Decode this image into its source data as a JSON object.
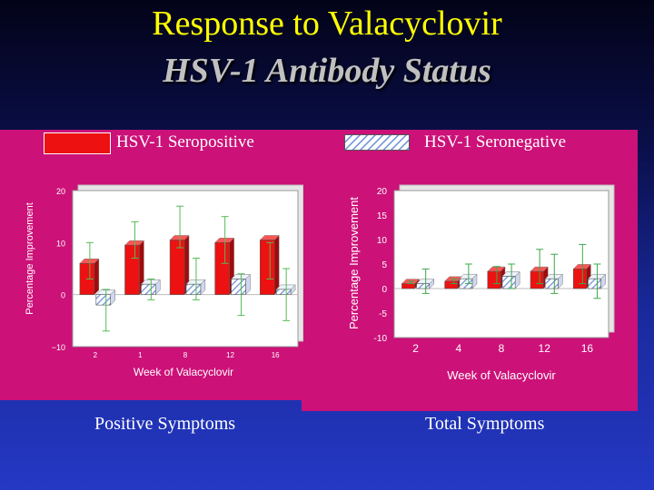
{
  "slide": {
    "title": "Response to Valacyclovir",
    "subtitle": "HSV-1 Antibody Status"
  },
  "legend": {
    "seropositive": "HSV-1 Seropositive",
    "seronegative": "HSV-1 Seronegative"
  },
  "captions": {
    "left": "Positive Symptoms",
    "right": "Total Symptoms"
  },
  "colors": {
    "background": "#1a2a9e",
    "panel": "#cc1178",
    "seropositive": "#ee1111",
    "seronegative_hatch": "#6b8fd6",
    "title": "#ffff00"
  },
  "chart_data": [
    {
      "type": "bar",
      "title": "",
      "xlabel": "Week of Valacyclovir",
      "ylabel": "Percentage Improvement",
      "categories": [
        "2",
        "1",
        "8",
        "12",
        "16"
      ],
      "yticks": [
        "20",
        "10",
        "0",
        "−10"
      ],
      "ylim": [
        -10,
        20
      ],
      "series": [
        {
          "name": "HSV-1 Seropositive",
          "values": [
            6,
            9.5,
            10.5,
            10,
            10.5
          ],
          "err_low": [
            3,
            7,
            9,
            6,
            3
          ],
          "err_high": [
            10,
            14,
            17,
            15,
            10
          ]
        },
        {
          "name": "HSV-1 Seronegative",
          "values": [
            -2,
            2,
            2,
            3,
            1
          ],
          "err_low": [
            -7,
            -1,
            -1,
            -4,
            -5
          ],
          "err_high": [
            1,
            3,
            7,
            4,
            5
          ]
        }
      ]
    },
    {
      "type": "bar",
      "title": "",
      "xlabel": "Week of Valacyclovir",
      "ylabel": "Percentage Improvement",
      "categories": [
        "2",
        "4",
        "8",
        "12",
        "16"
      ],
      "yticks": [
        "20",
        "15",
        "10",
        "5",
        "0",
        "-5",
        "-10"
      ],
      "ylim": [
        -10,
        20
      ],
      "series": [
        {
          "name": "HSV-1 Seropositive",
          "values": [
            1,
            1.5,
            3.5,
            3.5,
            4
          ],
          "err_low": [
            1,
            1,
            1,
            1,
            1
          ],
          "err_high": [
            1.5,
            2,
            4.5,
            8,
            9
          ]
        },
        {
          "name": "HSV-1 Seronegative",
          "values": [
            1,
            2,
            2.5,
            2,
            2
          ],
          "err_low": [
            -1,
            1,
            0,
            -1,
            -2
          ],
          "err_high": [
            4,
            5,
            5,
            7,
            5
          ]
        }
      ]
    }
  ]
}
